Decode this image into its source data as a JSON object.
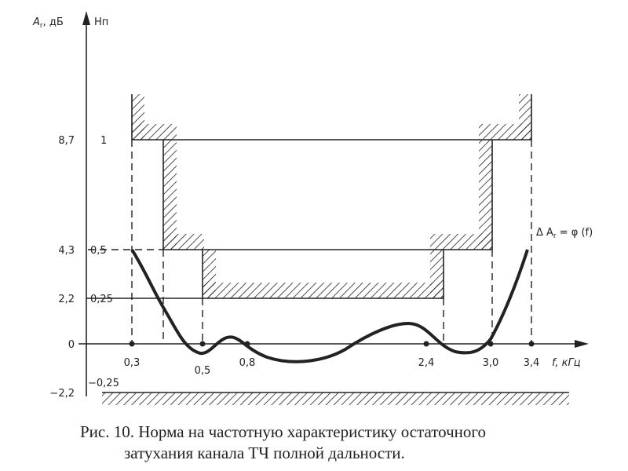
{
  "axes": {
    "left_title": {
      "symbol": "A",
      "subscript": "r",
      "unit": ", дБ"
    },
    "right_title": "Нп",
    "x_title": "f, кГц",
    "left_ticks": [
      "8,7",
      "4,3",
      "2,2",
      "0",
      "−2,2"
    ],
    "right_ticks": [
      "1",
      "0,5",
      "0,25",
      "−0,25"
    ],
    "x_ticks": [
      "0,3",
      "0,5",
      "0,8",
      "2,4",
      "3,0",
      "3,4"
    ]
  },
  "curve_label": {
    "prefix": "Δ A",
    "subscript": "r",
    "suffix": " = φ (f)"
  },
  "caption": {
    "line1": "Рис. 10. Норма на частотную характеристику остаточного",
    "line2": "затухания канала ТЧ полной дальности."
  }
}
